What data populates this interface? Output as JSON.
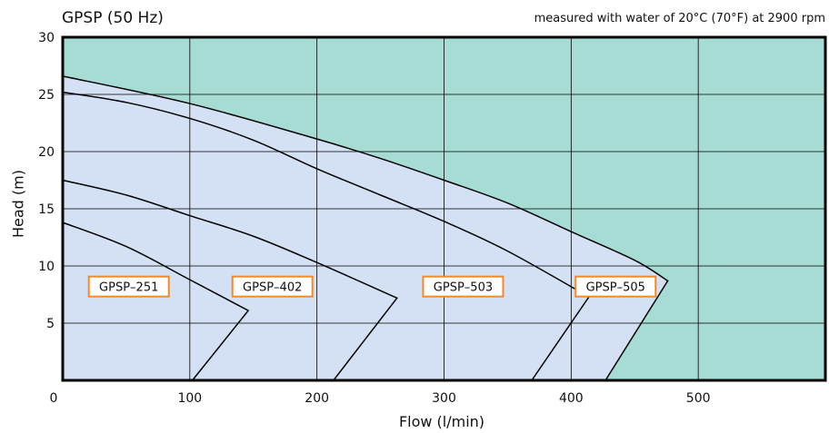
{
  "chart_data": {
    "type": "line",
    "title": "GPSP (50 Hz)",
    "subtitle": "measured with water of 20°C (70°F) at 2900 rpm",
    "xlabel": "Flow (l/min)",
    "ylabel": "Head (m)",
    "xlim": [
      0,
      600
    ],
    "ylim": [
      0,
      30
    ],
    "x_ticks": [
      0,
      100,
      200,
      300,
      400,
      500
    ],
    "y_ticks": [
      5,
      10,
      15,
      20,
      25,
      30
    ],
    "grid": true,
    "series": [
      {
        "name": "GPSP–251",
        "points": [
          [
            0,
            13.8
          ],
          [
            50,
            11.7
          ],
          [
            100,
            8.8
          ],
          [
            146,
            6.1
          ],
          [
            102,
            0
          ]
        ]
      },
      {
        "name": "GPSP–402",
        "points": [
          [
            0,
            17.5
          ],
          [
            50,
            16.2
          ],
          [
            100,
            14.4
          ],
          [
            150,
            12.6
          ],
          [
            200,
            10.3
          ],
          [
            263,
            7.2
          ],
          [
            213,
            0
          ]
        ]
      },
      {
        "name": "GPSP–503",
        "points": [
          [
            0,
            25.2
          ],
          [
            50,
            24.3
          ],
          [
            100,
            22.9
          ],
          [
            150,
            21.0
          ],
          [
            200,
            18.5
          ],
          [
            250,
            16.2
          ],
          [
            300,
            13.9
          ],
          [
            350,
            11.3
          ],
          [
            414,
            7.3
          ],
          [
            369,
            0
          ]
        ]
      },
      {
        "name": "GPSP–505",
        "points": [
          [
            0,
            26.6
          ],
          [
            100,
            24.2
          ],
          [
            200,
            21.1
          ],
          [
            250,
            19.4
          ],
          [
            300,
            17.5
          ],
          [
            350,
            15.5
          ],
          [
            400,
            13.0
          ],
          [
            450,
            10.5
          ],
          [
            476,
            8.7
          ],
          [
            427,
            0
          ]
        ]
      }
    ],
    "colors": {
      "outer_fill": "#a6dcd4",
      "curve_fill": "#d4e0f4",
      "grid": "#000000",
      "label_border": "#f08a2a"
    }
  }
}
